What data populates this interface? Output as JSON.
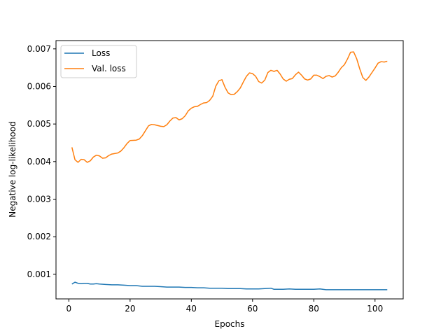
{
  "chart_data": {
    "type": "line",
    "title": "",
    "xlabel": "Epochs",
    "ylabel": "Negative log-likelihood",
    "xlim": [
      -4.2,
      109.2
    ],
    "ylim": [
      0.000345,
      0.00722
    ],
    "xticks": [
      0,
      20,
      40,
      60,
      80,
      100
    ],
    "yticks": [
      0.001,
      0.002,
      0.003,
      0.004,
      0.005,
      0.006,
      0.007
    ],
    "ytick_labels": [
      "0.001",
      "0.002",
      "0.003",
      "0.004",
      "0.005",
      "0.006",
      "0.007"
    ],
    "grid": false,
    "legend_position": "top-left",
    "series": [
      {
        "name": "Loss",
        "color": "#1f77b4",
        "points": [
          [
            1,
            0.00074
          ],
          [
            2,
            0.00079
          ],
          [
            3,
            0.00076
          ],
          [
            4,
            0.00075
          ],
          [
            5,
            0.00076
          ],
          [
            6,
            0.00076
          ],
          [
            7,
            0.00074
          ],
          [
            8,
            0.00074
          ],
          [
            9,
            0.00075
          ],
          [
            10,
            0.00074
          ],
          [
            12,
            0.00073
          ],
          [
            14,
            0.00072
          ],
          [
            16,
            0.00072
          ],
          [
            18,
            0.00071
          ],
          [
            20,
            0.0007
          ],
          [
            22,
            0.0007
          ],
          [
            24,
            0.00068
          ],
          [
            26,
            0.00068
          ],
          [
            28,
            0.00068
          ],
          [
            30,
            0.00067
          ],
          [
            32,
            0.00066
          ],
          [
            34,
            0.00066
          ],
          [
            36,
            0.00066
          ],
          [
            38,
            0.00065
          ],
          [
            40,
            0.00065
          ],
          [
            42,
            0.00064
          ],
          [
            44,
            0.00064
          ],
          [
            46,
            0.00063
          ],
          [
            48,
            0.00063
          ],
          [
            50,
            0.00063
          ],
          [
            52,
            0.00062
          ],
          [
            54,
            0.00062
          ],
          [
            56,
            0.00062
          ],
          [
            58,
            0.00061
          ],
          [
            60,
            0.00061
          ],
          [
            62,
            0.00061
          ],
          [
            64,
            0.00062
          ],
          [
            66,
            0.00063
          ],
          [
            67,
            0.0006
          ],
          [
            70,
            0.0006
          ],
          [
            72,
            0.00061
          ],
          [
            74,
            0.0006
          ],
          [
            76,
            0.0006
          ],
          [
            78,
            0.0006
          ],
          [
            80,
            0.0006
          ],
          [
            82,
            0.00061
          ],
          [
            84,
            0.00059
          ],
          [
            86,
            0.00059
          ],
          [
            88,
            0.00059
          ],
          [
            90,
            0.00059
          ],
          [
            92,
            0.00059
          ],
          [
            94,
            0.00059
          ],
          [
            96,
            0.00059
          ],
          [
            98,
            0.00059
          ],
          [
            100,
            0.00059
          ],
          [
            102,
            0.00059
          ],
          [
            104,
            0.00059
          ]
        ]
      },
      {
        "name": "Val. loss",
        "color": "#ff7f0e",
        "points": [
          [
            1,
            0.00438
          ],
          [
            2,
            0.00405
          ],
          [
            3,
            0.00398
          ],
          [
            4,
            0.00406
          ],
          [
            5,
            0.00405
          ],
          [
            6,
            0.00398
          ],
          [
            7,
            0.00402
          ],
          [
            8,
            0.00412
          ],
          [
            9,
            0.00417
          ],
          [
            10,
            0.00415
          ],
          [
            11,
            0.00409
          ],
          [
            12,
            0.0041
          ],
          [
            13,
            0.00416
          ],
          [
            14,
            0.0042
          ],
          [
            16,
            0.00423
          ],
          [
            17,
            0.00428
          ],
          [
            18,
            0.00437
          ],
          [
            19,
            0.00448
          ],
          [
            20,
            0.00456
          ],
          [
            22,
            0.00457
          ],
          [
            23,
            0.0046
          ],
          [
            24,
            0.00469
          ],
          [
            25,
            0.00482
          ],
          [
            26,
            0.00495
          ],
          [
            27,
            0.00499
          ],
          [
            28,
            0.00498
          ],
          [
            30,
            0.00494
          ],
          [
            31,
            0.00493
          ],
          [
            32,
            0.00498
          ],
          [
            33,
            0.00508
          ],
          [
            34,
            0.00516
          ],
          [
            35,
            0.00517
          ],
          [
            36,
            0.00511
          ],
          [
            37,
            0.00514
          ],
          [
            38,
            0.00522
          ],
          [
            39,
            0.00535
          ],
          [
            40,
            0.00542
          ],
          [
            41,
            0.00546
          ],
          [
            42,
            0.00547
          ],
          [
            43,
            0.00552
          ],
          [
            44,
            0.00556
          ],
          [
            45,
            0.00557
          ],
          [
            46,
            0.00563
          ],
          [
            47,
            0.00574
          ],
          [
            48,
            0.00601
          ],
          [
            49,
            0.00615
          ],
          [
            50,
            0.00618
          ],
          [
            51,
            0.00598
          ],
          [
            52,
            0.00583
          ],
          [
            53,
            0.00578
          ],
          [
            54,
            0.00579
          ],
          [
            55,
            0.00586
          ],
          [
            56,
            0.00596
          ],
          [
            57,
            0.00612
          ],
          [
            58,
            0.00627
          ],
          [
            59,
            0.00636
          ],
          [
            60,
            0.00634
          ],
          [
            61,
            0.00627
          ],
          [
            62,
            0.00613
          ],
          [
            63,
            0.00609
          ],
          [
            64,
            0.00617
          ],
          [
            65,
            0.00637
          ],
          [
            66,
            0.00643
          ],
          [
            67,
            0.0064
          ],
          [
            68,
            0.00643
          ],
          [
            69,
            0.00633
          ],
          [
            70,
            0.0062
          ],
          [
            71,
            0.00614
          ],
          [
            72,
            0.00619
          ],
          [
            73,
            0.00621
          ],
          [
            74,
            0.00631
          ],
          [
            75,
            0.00638
          ],
          [
            76,
            0.0063
          ],
          [
            77,
            0.0062
          ],
          [
            78,
            0.00617
          ],
          [
            79,
            0.0062
          ],
          [
            80,
            0.0063
          ],
          [
            81,
            0.0063
          ],
          [
            82,
            0.00626
          ],
          [
            83,
            0.00621
          ],
          [
            84,
            0.00627
          ],
          [
            85,
            0.00629
          ],
          [
            86,
            0.00625
          ],
          [
            87,
            0.00628
          ],
          [
            88,
            0.00638
          ],
          [
            89,
            0.0065
          ],
          [
            90,
            0.00658
          ],
          [
            91,
            0.00673
          ],
          [
            92,
            0.00691
          ],
          [
            93,
            0.00692
          ],
          [
            94,
            0.00674
          ],
          [
            95,
            0.00647
          ],
          [
            96,
            0.00624
          ],
          [
            97,
            0.00616
          ],
          [
            98,
            0.00625
          ],
          [
            99,
            0.00637
          ],
          [
            100,
            0.00649
          ],
          [
            101,
            0.00662
          ],
          [
            102,
            0.00666
          ],
          [
            103,
            0.00665
          ],
          [
            104,
            0.00667
          ]
        ]
      }
    ]
  }
}
